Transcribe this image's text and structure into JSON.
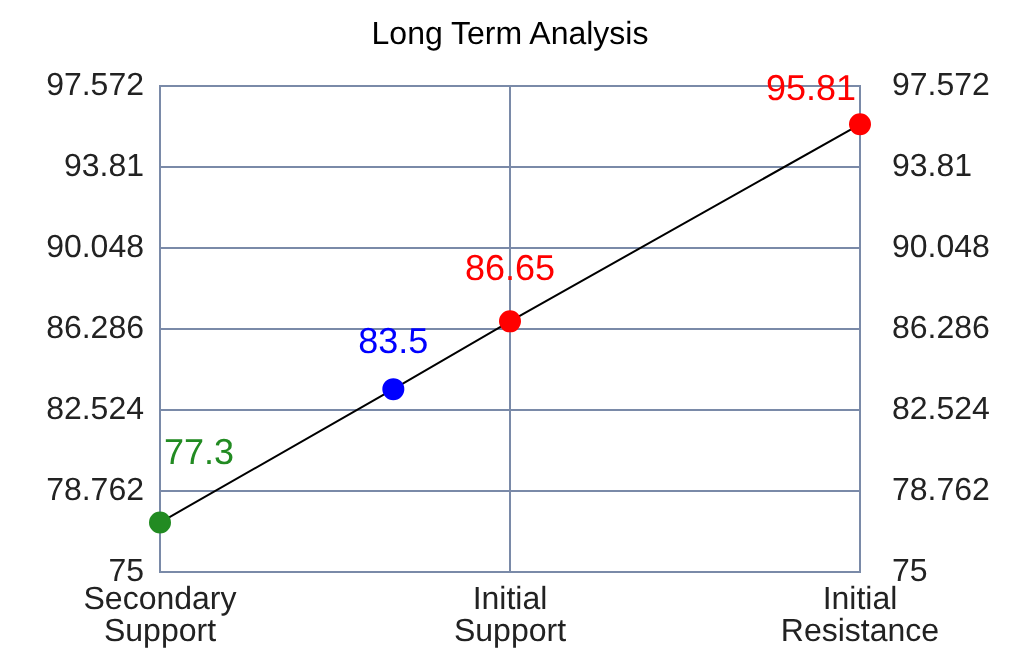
{
  "chart_data": {
    "type": "line",
    "title": "Long Term Analysis",
    "categories": [
      "Secondary Support",
      null,
      null,
      "Initial Support",
      null,
      null,
      "Initial Resistance"
    ],
    "series": [
      {
        "color": "#000000",
        "colors": [
          "#228b22",
          null,
          "#0000ff",
          "#ff0000",
          null,
          null,
          "#ff0000"
        ],
        "values": [
          77.3,
          null,
          83.5,
          86.65,
          null,
          null,
          95.81
        ]
      }
    ],
    "ylim": [
      75,
      97.572
    ],
    "yticks": [
      75,
      78.762,
      82.524,
      86.286,
      90.048,
      93.81,
      97.572
    ],
    "y2lim": [
      75,
      97.572
    ],
    "y2ticks": [
      75,
      78.762,
      82.524,
      86.286,
      90.048,
      93.81,
      97.572
    ],
    "grid": true,
    "marker": "circle",
    "line_style": "solid",
    "data_labels": true,
    "legend": false
  }
}
